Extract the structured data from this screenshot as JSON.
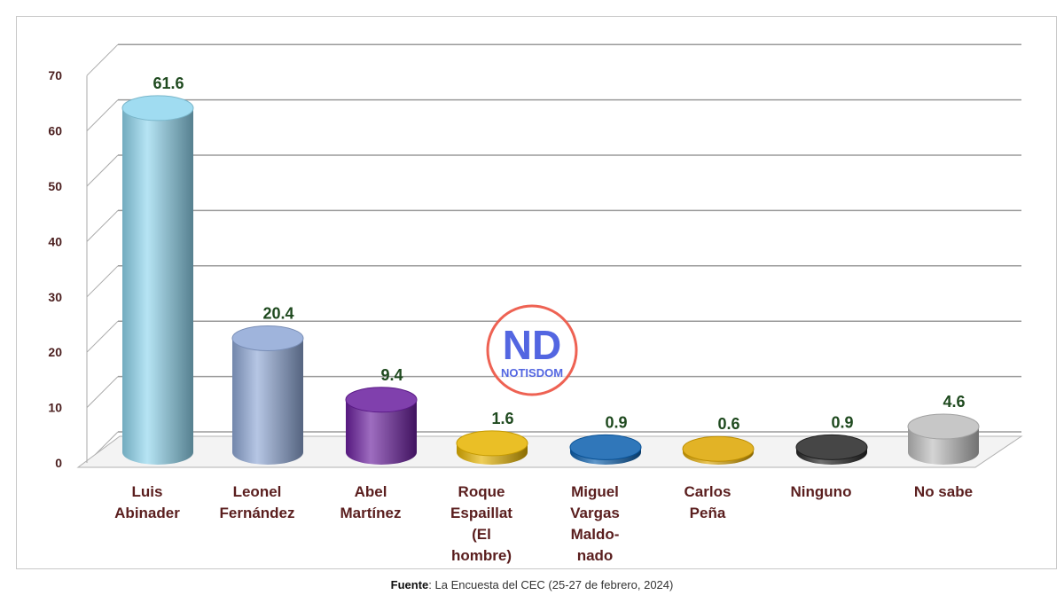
{
  "chart_data": {
    "type": "bar",
    "style": "3d-cylinder",
    "categories": [
      [
        "Luis",
        "Abinader"
      ],
      [
        "Leonel",
        "Fernández"
      ],
      [
        "Abel",
        "Martínez"
      ],
      [
        "Roque",
        "Espaillat",
        "(El",
        "hombre)"
      ],
      [
        "Miguel",
        "Vargas",
        "Maldo-",
        "nado"
      ],
      [
        "Carlos",
        "Peña"
      ],
      [
        "Ninguno"
      ],
      [
        "No sabe"
      ]
    ],
    "values": [
      61.6,
      20.4,
      9.4,
      1.6,
      0.9,
      0.6,
      0.9,
      4.6
    ],
    "value_labels": [
      "61.6",
      "20.4",
      "9.4",
      "1.6",
      "0.9",
      "0.6",
      "0.9",
      "4.6"
    ],
    "colors": [
      "#8fd6ee",
      "#8ea7d6",
      "#6a1e9e",
      "#e6b400",
      "#0b5fae",
      "#dda600",
      "#252525",
      "#bdbdbd"
    ],
    "ylim": [
      0,
      70
    ],
    "yticks": [
      "0",
      "10",
      "20",
      "30",
      "40",
      "50",
      "60",
      "70"
    ],
    "grid": true,
    "xlabel": "",
    "ylabel": "",
    "title": ""
  },
  "source": {
    "label": "Fuente",
    "text": ": La Encuesta del CEC (25-27 de febrero, 2024)"
  },
  "watermark": {
    "initials": "ND",
    "name": "NOTISDOM",
    "color": "#4a5ee0",
    "ring": "#ee5a4a"
  }
}
